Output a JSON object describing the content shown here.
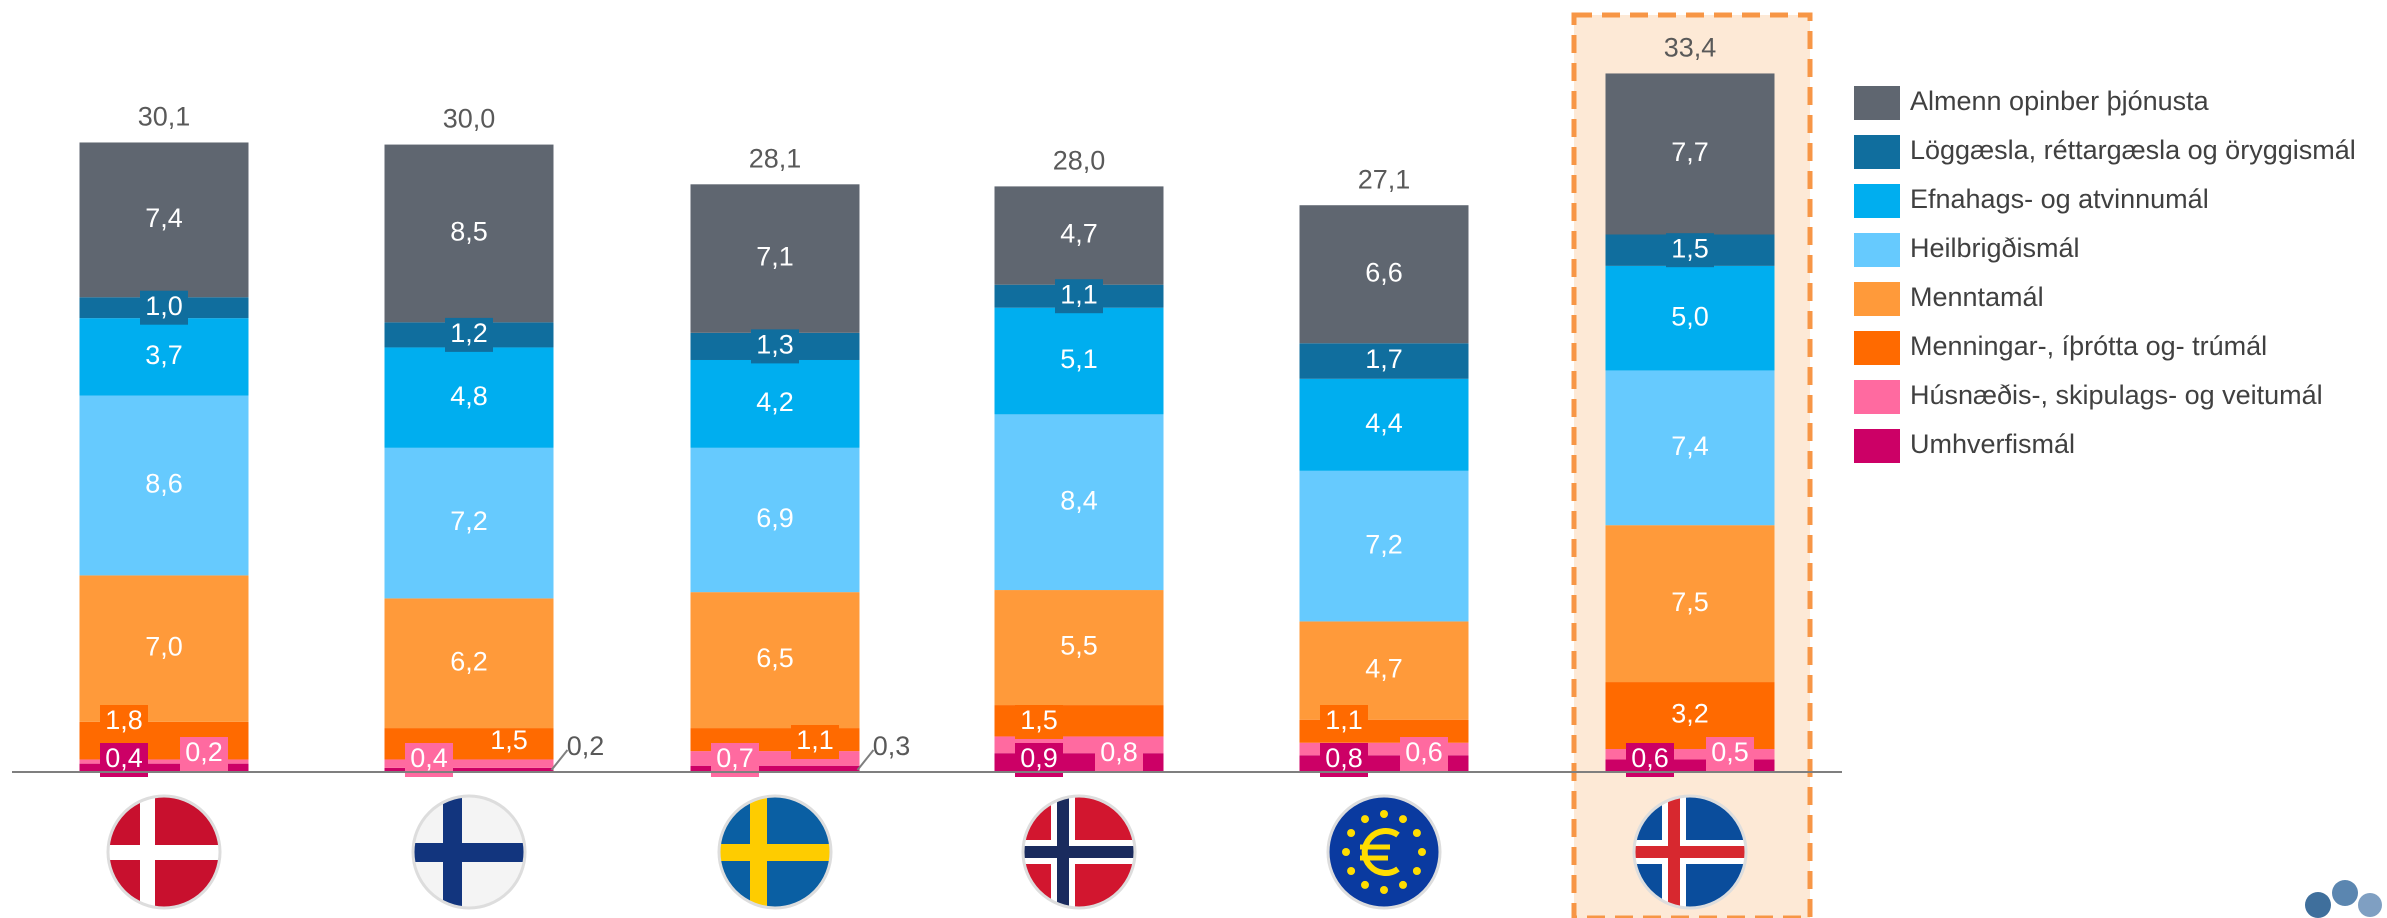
{
  "chart_data": {
    "type": "stacked_bar",
    "categories": [
      null,
      null,
      null,
      null,
      null,
      null
    ],
    "series": [
      {
        "name": "Almenn opinber þjónusta",
        "color": "#5f6670",
        "values": [
          7.4,
          8.5,
          7.1,
          4.7,
          6.6,
          7.7
        ],
        "value_labels": [
          "7,4",
          "8,5",
          "7,1",
          "4,7",
          "6,6",
          "7,7"
        ]
      },
      {
        "name": "Löggæsla, réttargæsla og öryggismál",
        "color": "#106e9e",
        "values": [
          1.0,
          1.2,
          1.3,
          1.1,
          1.7,
          1.5
        ],
        "value_labels": [
          "1,0",
          "1,2",
          "1,3",
          "1,1",
          "1,7",
          "1,5"
        ]
      },
      {
        "name": "Efnahags- og atvinnumál",
        "color": "#00aeef",
        "values": [
          3.7,
          4.8,
          4.2,
          5.1,
          4.4,
          5.0
        ],
        "value_labels": [
          "3,7",
          "4,8",
          "4,2",
          "5,1",
          "4,4",
          "5,0"
        ]
      },
      {
        "name": "Heilbrigðismál",
        "color": "#66cafe",
        "values": [
          8.6,
          7.2,
          6.9,
          8.4,
          7.2,
          7.4
        ],
        "value_labels": [
          "8,6",
          "7,2",
          "6,9",
          "8,4",
          "7,2",
          "7,4"
        ]
      },
      {
        "name": "Menntamál",
        "color": "#ff9a3a",
        "values": [
          7.0,
          6.2,
          6.5,
          5.5,
          4.7,
          7.5
        ],
        "value_labels": [
          "7,0",
          "6,2",
          "6,5",
          "5,5",
          "4,7",
          "7,5"
        ]
      },
      {
        "name": "Menningar-, íþrótta og- trúmál",
        "color": "#ff6a00",
        "values": [
          1.8,
          1.5,
          1.1,
          1.5,
          1.1,
          3.2
        ],
        "value_labels": [
          "1,8",
          "1,5",
          "1,1",
          "1,5",
          "1,1",
          "3,2"
        ]
      },
      {
        "name": "Húsnæðis-, skipulags- og veitumál",
        "color": "#ff6aa0",
        "values": [
          0.2,
          0.4,
          0.7,
          0.8,
          0.6,
          0.5
        ],
        "value_labels": [
          "0,2",
          "0,4",
          "0,7",
          "0,8",
          "0,6",
          "0,5"
        ]
      },
      {
        "name": "Umhverfismál",
        "color": "#cc0066",
        "values": [
          0.4,
          0.2,
          0.3,
          0.9,
          0.8,
          0.6
        ],
        "value_labels": [
          "0,4",
          "0,2",
          "0,3",
          "0,9",
          "0,8",
          "0,6"
        ]
      }
    ],
    "totals": [
      30.1,
      30.0,
      28.1,
      28.0,
      27.1,
      33.4
    ],
    "total_labels": [
      "30,1",
      "30,0",
      "28,1",
      "28,0",
      "27,1",
      "33,4"
    ],
    "ylim": [
      0,
      35
    ],
    "legend": "right"
  }
}
